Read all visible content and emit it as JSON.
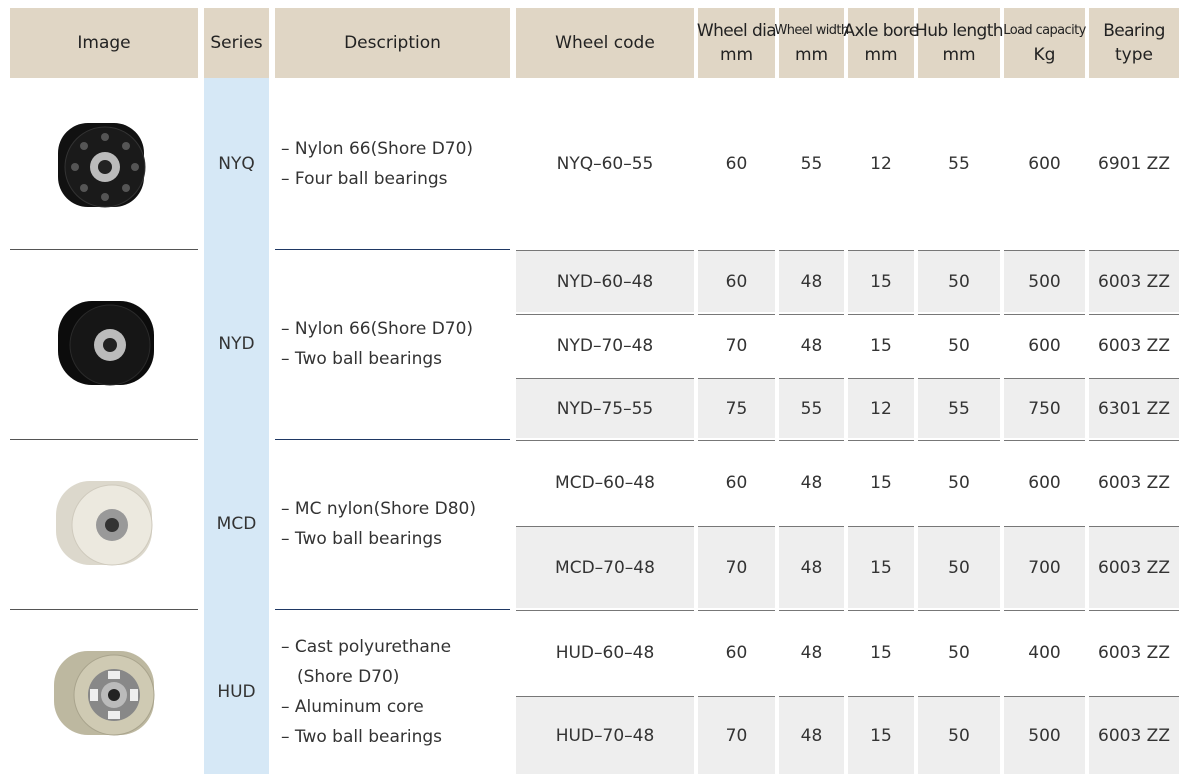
{
  "columns": [
    [
      "Image"
    ],
    [
      "Series"
    ],
    [
      "Description"
    ],
    [
      "Wheel code"
    ],
    [
      "Wheel dia",
      "mm"
    ],
    [
      "Wheel width",
      "mm"
    ],
    [
      "Axle bore",
      "mm"
    ],
    [
      "Hub length",
      "mm"
    ],
    [
      "Load capacity",
      "Kg"
    ],
    [
      "Bearing",
      "type"
    ]
  ],
  "groups": [
    {
      "series": "NYQ",
      "description": [
        "– Nylon 66(Shore D70)",
        "– Four ball bearings"
      ],
      "rows": [
        [
          "NYQ–60–55",
          60,
          55,
          12,
          55,
          600,
          "6901 ZZ"
        ]
      ]
    },
    {
      "series": "NYD",
      "description": [
        "– Nylon 66(Shore D70)",
        "– Two ball bearings"
      ],
      "rows": [
        [
          "NYD–60–48",
          60,
          48,
          15,
          50,
          500,
          "6003 ZZ"
        ],
        [
          "NYD–70–48",
          70,
          48,
          15,
          50,
          600,
          "6003 ZZ"
        ],
        [
          "NYD–75–55",
          75,
          55,
          12,
          55,
          750,
          "6301 ZZ"
        ]
      ]
    },
    {
      "series": "MCD",
      "description": [
        "– MC nylon(Shore D80)",
        "– Two ball bearings"
      ],
      "rows": [
        [
          "MCD–60–48",
          60,
          48,
          15,
          50,
          600,
          "6003 ZZ"
        ],
        [
          "MCD–70–48",
          70,
          48,
          15,
          50,
          700,
          "6003 ZZ"
        ]
      ]
    },
    {
      "series": "HUD",
      "description": [
        "– Cast polyurethane",
        "(Shore D70)",
        "– Aluminum core",
        "– Two ball bearings"
      ],
      "rows": [
        [
          "HUD–60–48",
          60,
          48,
          15,
          50,
          400,
          "6003 ZZ"
        ],
        [
          "HUD–70–48",
          70,
          48,
          15,
          50,
          500,
          "6003 ZZ"
        ]
      ]
    }
  ]
}
